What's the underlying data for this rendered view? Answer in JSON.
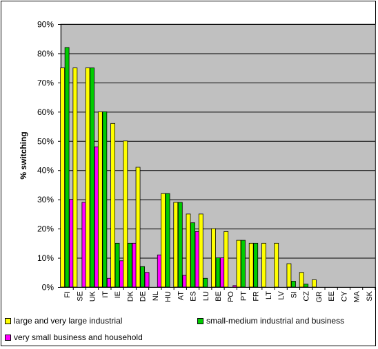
{
  "chart_data": {
    "type": "bar",
    "ylabel": "% switching",
    "ylim": [
      0,
      90
    ],
    "ytick_step": 10,
    "ytick_suffix": "%",
    "grid": true,
    "legend_position": "bottom",
    "plot_background": "#c0c0c0",
    "categories": [
      "FI",
      "SE",
      "UK",
      "IT",
      "IE",
      "DK",
      "DE",
      "NL",
      "HU",
      "AT",
      "ES",
      "LU",
      "BE",
      "PO",
      "PT",
      "FR",
      "LT",
      "LV",
      "SI",
      "CZ",
      "GR",
      "EE",
      "CY",
      "MA",
      "SK"
    ],
    "series": [
      {
        "name": "large and very large industrial",
        "color": "#ffff00",
        "values": [
          75,
          75,
          75,
          60,
          56,
          50,
          41,
          null,
          32,
          29,
          25,
          25,
          20,
          19,
          16,
          15,
          15,
          15,
          8,
          5,
          2.5,
          null,
          null,
          null,
          null
        ]
      },
      {
        "name": "small-medium industrial and business",
        "color": "#00cc00",
        "values": [
          82,
          null,
          75,
          60,
          15,
          15,
          7,
          null,
          32,
          29,
          22,
          3,
          10,
          null,
          16,
          15,
          null,
          null,
          2,
          1,
          null,
          null,
          null,
          null,
          null
        ]
      },
      {
        "name": "very small business and household",
        "color": "#ff00ff",
        "values": [
          30,
          29,
          48,
          3,
          9,
          15,
          5,
          11,
          null,
          4,
          19,
          null,
          10,
          0.5,
          null,
          null,
          null,
          null,
          null,
          null,
          null,
          null,
          null,
          null,
          null
        ]
      }
    ]
  }
}
